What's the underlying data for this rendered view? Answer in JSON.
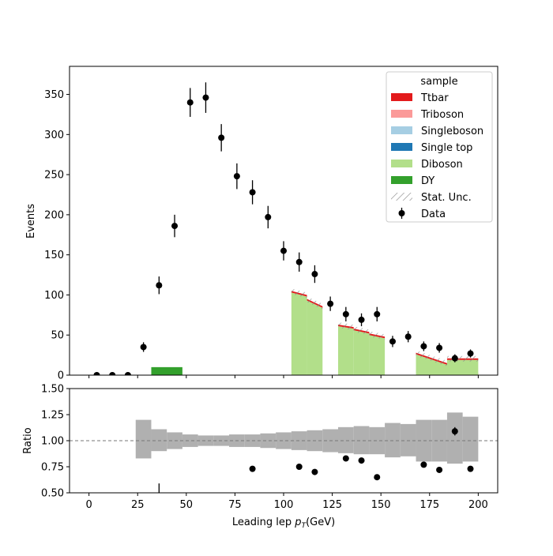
{
  "chart_data": {
    "type": "bar",
    "subtype": "stacked-histogram-with-ratio",
    "xlabel": "Leading lep",
    "xlabel_math": "p",
    "xlabel_math_sub": "T",
    "xlabel_unit": "(GeV)",
    "xlim": [
      -10,
      210
    ],
    "xticks": [
      "0",
      "25",
      "50",
      "75",
      "100",
      "125",
      "150",
      "175",
      "200"
    ],
    "xtick_values": [
      0,
      25,
      50,
      75,
      100,
      125,
      150,
      175,
      200
    ],
    "top_panel": {
      "ylabel": "Events",
      "ylim": [
        0,
        385
      ],
      "yticks": [
        "0",
        "50",
        "100",
        "150",
        "200",
        "250",
        "300",
        "350"
      ],
      "ytick_values": [
        0,
        50,
        100,
        150,
        200,
        250,
        300,
        350
      ],
      "grid": false
    },
    "bottom_panel": {
      "ylabel": "Ratio",
      "ylim": [
        0.5,
        1.5
      ],
      "yticks": [
        "0.50",
        "0.75",
        "1.00",
        "1.25",
        "1.50"
      ],
      "ytick_values": [
        0.5,
        0.75,
        1.0,
        1.25,
        1.5
      ],
      "reference_line": 1.0
    },
    "legend": {
      "title": "sample",
      "position": "top-right",
      "entries": [
        {
          "label": "Ttbar",
          "color": "#e31a1c",
          "kind": "patch"
        },
        {
          "label": "Triboson",
          "color": "#fb9a99",
          "kind": "patch"
        },
        {
          "label": "Singleboson",
          "color": "#a6cee3",
          "kind": "patch"
        },
        {
          "label": "Single top",
          "color": "#1f78b4",
          "kind": "patch"
        },
        {
          "label": "Diboson",
          "color": "#b2df8a",
          "kind": "patch"
        },
        {
          "label": "DY",
          "color": "#33a02c",
          "kind": "patch"
        },
        {
          "label": "Stat. Unc.",
          "color": "#999999",
          "kind": "hatch"
        },
        {
          "label": "Data",
          "color": "#000000",
          "kind": "errorbar"
        }
      ]
    },
    "mc_segments": [
      {
        "x0": 32,
        "x1": 48,
        "y0": 10,
        "y1": 10,
        "sample": "DY"
      },
      {
        "x0": 104,
        "x1": 112,
        "y0": 103,
        "y1": 98,
        "sample": "Diboson"
      },
      {
        "x0": 112,
        "x1": 120,
        "y0": 93,
        "y1": 84,
        "sample": "Diboson"
      },
      {
        "x0": 128,
        "x1": 136,
        "y0": 61,
        "y1": 58,
        "sample": "Diboson"
      },
      {
        "x0": 136,
        "x1": 144,
        "y0": 56,
        "y1": 52,
        "sample": "Diboson"
      },
      {
        "x0": 144,
        "x1": 152,
        "y0": 50,
        "y1": 46,
        "sample": "Diboson"
      },
      {
        "x0": 168,
        "x1": 200,
        "y0": 26,
        "y1": 0,
        "sample": "Diboson"
      },
      {
        "x0": 184,
        "x1": 200,
        "y0": 19,
        "y1": 19,
        "sample": "Diboson"
      }
    ],
    "data_points": [
      {
        "x": 4,
        "y": 0,
        "err": 0
      },
      {
        "x": 12,
        "y": 0,
        "err": 0
      },
      {
        "x": 20,
        "y": 0,
        "err": 0
      },
      {
        "x": 28,
        "y": 35,
        "err": 6
      },
      {
        "x": 36,
        "y": 112,
        "err": 11
      },
      {
        "x": 44,
        "y": 186,
        "err": 14
      },
      {
        "x": 52,
        "y": 340,
        "err": 18
      },
      {
        "x": 60,
        "y": 346,
        "err": 19
      },
      {
        "x": 68,
        "y": 296,
        "err": 17
      },
      {
        "x": 76,
        "y": 248,
        "err": 16
      },
      {
        "x": 84,
        "y": 228,
        "err": 15
      },
      {
        "x": 92,
        "y": 197,
        "err": 14
      },
      {
        "x": 100,
        "y": 155,
        "err": 12
      },
      {
        "x": 108,
        "y": 141,
        "err": 12
      },
      {
        "x": 116,
        "y": 126,
        "err": 11
      },
      {
        "x": 124,
        "y": 89,
        "err": 9
      },
      {
        "x": 132,
        "y": 76,
        "err": 9
      },
      {
        "x": 140,
        "y": 69,
        "err": 8
      },
      {
        "x": 148,
        "y": 76,
        "err": 9
      },
      {
        "x": 156,
        "y": 42,
        "err": 7
      },
      {
        "x": 164,
        "y": 48,
        "err": 7
      },
      {
        "x": 172,
        "y": 36,
        "err": 6
      },
      {
        "x": 180,
        "y": 34,
        "err": 6
      },
      {
        "x": 188,
        "y": 21,
        "err": 5
      },
      {
        "x": 196,
        "y": 27,
        "err": 5
      }
    ],
    "ratio_band": [
      {
        "x0": 24,
        "x1": 32,
        "lo": 0.83,
        "hi": 1.2
      },
      {
        "x0": 32,
        "x1": 40,
        "lo": 0.9,
        "hi": 1.11
      },
      {
        "x0": 40,
        "x1": 48,
        "lo": 0.92,
        "hi": 1.08
      },
      {
        "x0": 48,
        "x1": 56,
        "lo": 0.94,
        "hi": 1.06
      },
      {
        "x0": 56,
        "x1": 64,
        "lo": 0.95,
        "hi": 1.05
      },
      {
        "x0": 64,
        "x1": 72,
        "lo": 0.95,
        "hi": 1.05
      },
      {
        "x0": 72,
        "x1": 80,
        "lo": 0.94,
        "hi": 1.06
      },
      {
        "x0": 80,
        "x1": 88,
        "lo": 0.94,
        "hi": 1.06
      },
      {
        "x0": 88,
        "x1": 96,
        "lo": 0.93,
        "hi": 1.07
      },
      {
        "x0": 96,
        "x1": 104,
        "lo": 0.92,
        "hi": 1.08
      },
      {
        "x0": 104,
        "x1": 112,
        "lo": 0.91,
        "hi": 1.09
      },
      {
        "x0": 112,
        "x1": 120,
        "lo": 0.9,
        "hi": 1.1
      },
      {
        "x0": 120,
        "x1": 128,
        "lo": 0.89,
        "hi": 1.11
      },
      {
        "x0": 128,
        "x1": 136,
        "lo": 0.88,
        "hi": 1.13
      },
      {
        "x0": 136,
        "x1": 144,
        "lo": 0.87,
        "hi": 1.14
      },
      {
        "x0": 144,
        "x1": 152,
        "lo": 0.87,
        "hi": 1.13
      },
      {
        "x0": 152,
        "x1": 160,
        "lo": 0.84,
        "hi": 1.17
      },
      {
        "x0": 160,
        "x1": 168,
        "lo": 0.85,
        "hi": 1.16
      },
      {
        "x0": 168,
        "x1": 176,
        "lo": 0.8,
        "hi": 1.2
      },
      {
        "x0": 176,
        "x1": 184,
        "lo": 0.8,
        "hi": 1.2
      },
      {
        "x0": 184,
        "x1": 192,
        "lo": 0.78,
        "hi": 1.27
      },
      {
        "x0": 192,
        "x1": 200,
        "lo": 0.8,
        "hi": 1.23
      }
    ],
    "ratio_points": [
      {
        "x": 36,
        "y": 0.5,
        "err": 0.09
      },
      {
        "x": 84,
        "y": 0.73,
        "err": 0
      },
      {
        "x": 108,
        "y": 0.75,
        "err": 0
      },
      {
        "x": 116,
        "y": 0.7,
        "err": 0
      },
      {
        "x": 132,
        "y": 0.83,
        "err": 0
      },
      {
        "x": 140,
        "y": 0.81,
        "err": 0
      },
      {
        "x": 148,
        "y": 0.65,
        "err": 0
      },
      {
        "x": 172,
        "y": 0.77,
        "err": 0
      },
      {
        "x": 180,
        "y": 0.72,
        "err": 0
      },
      {
        "x": 188,
        "y": 1.09,
        "err": 0.04
      },
      {
        "x": 196,
        "y": 0.73,
        "err": 0
      }
    ]
  }
}
